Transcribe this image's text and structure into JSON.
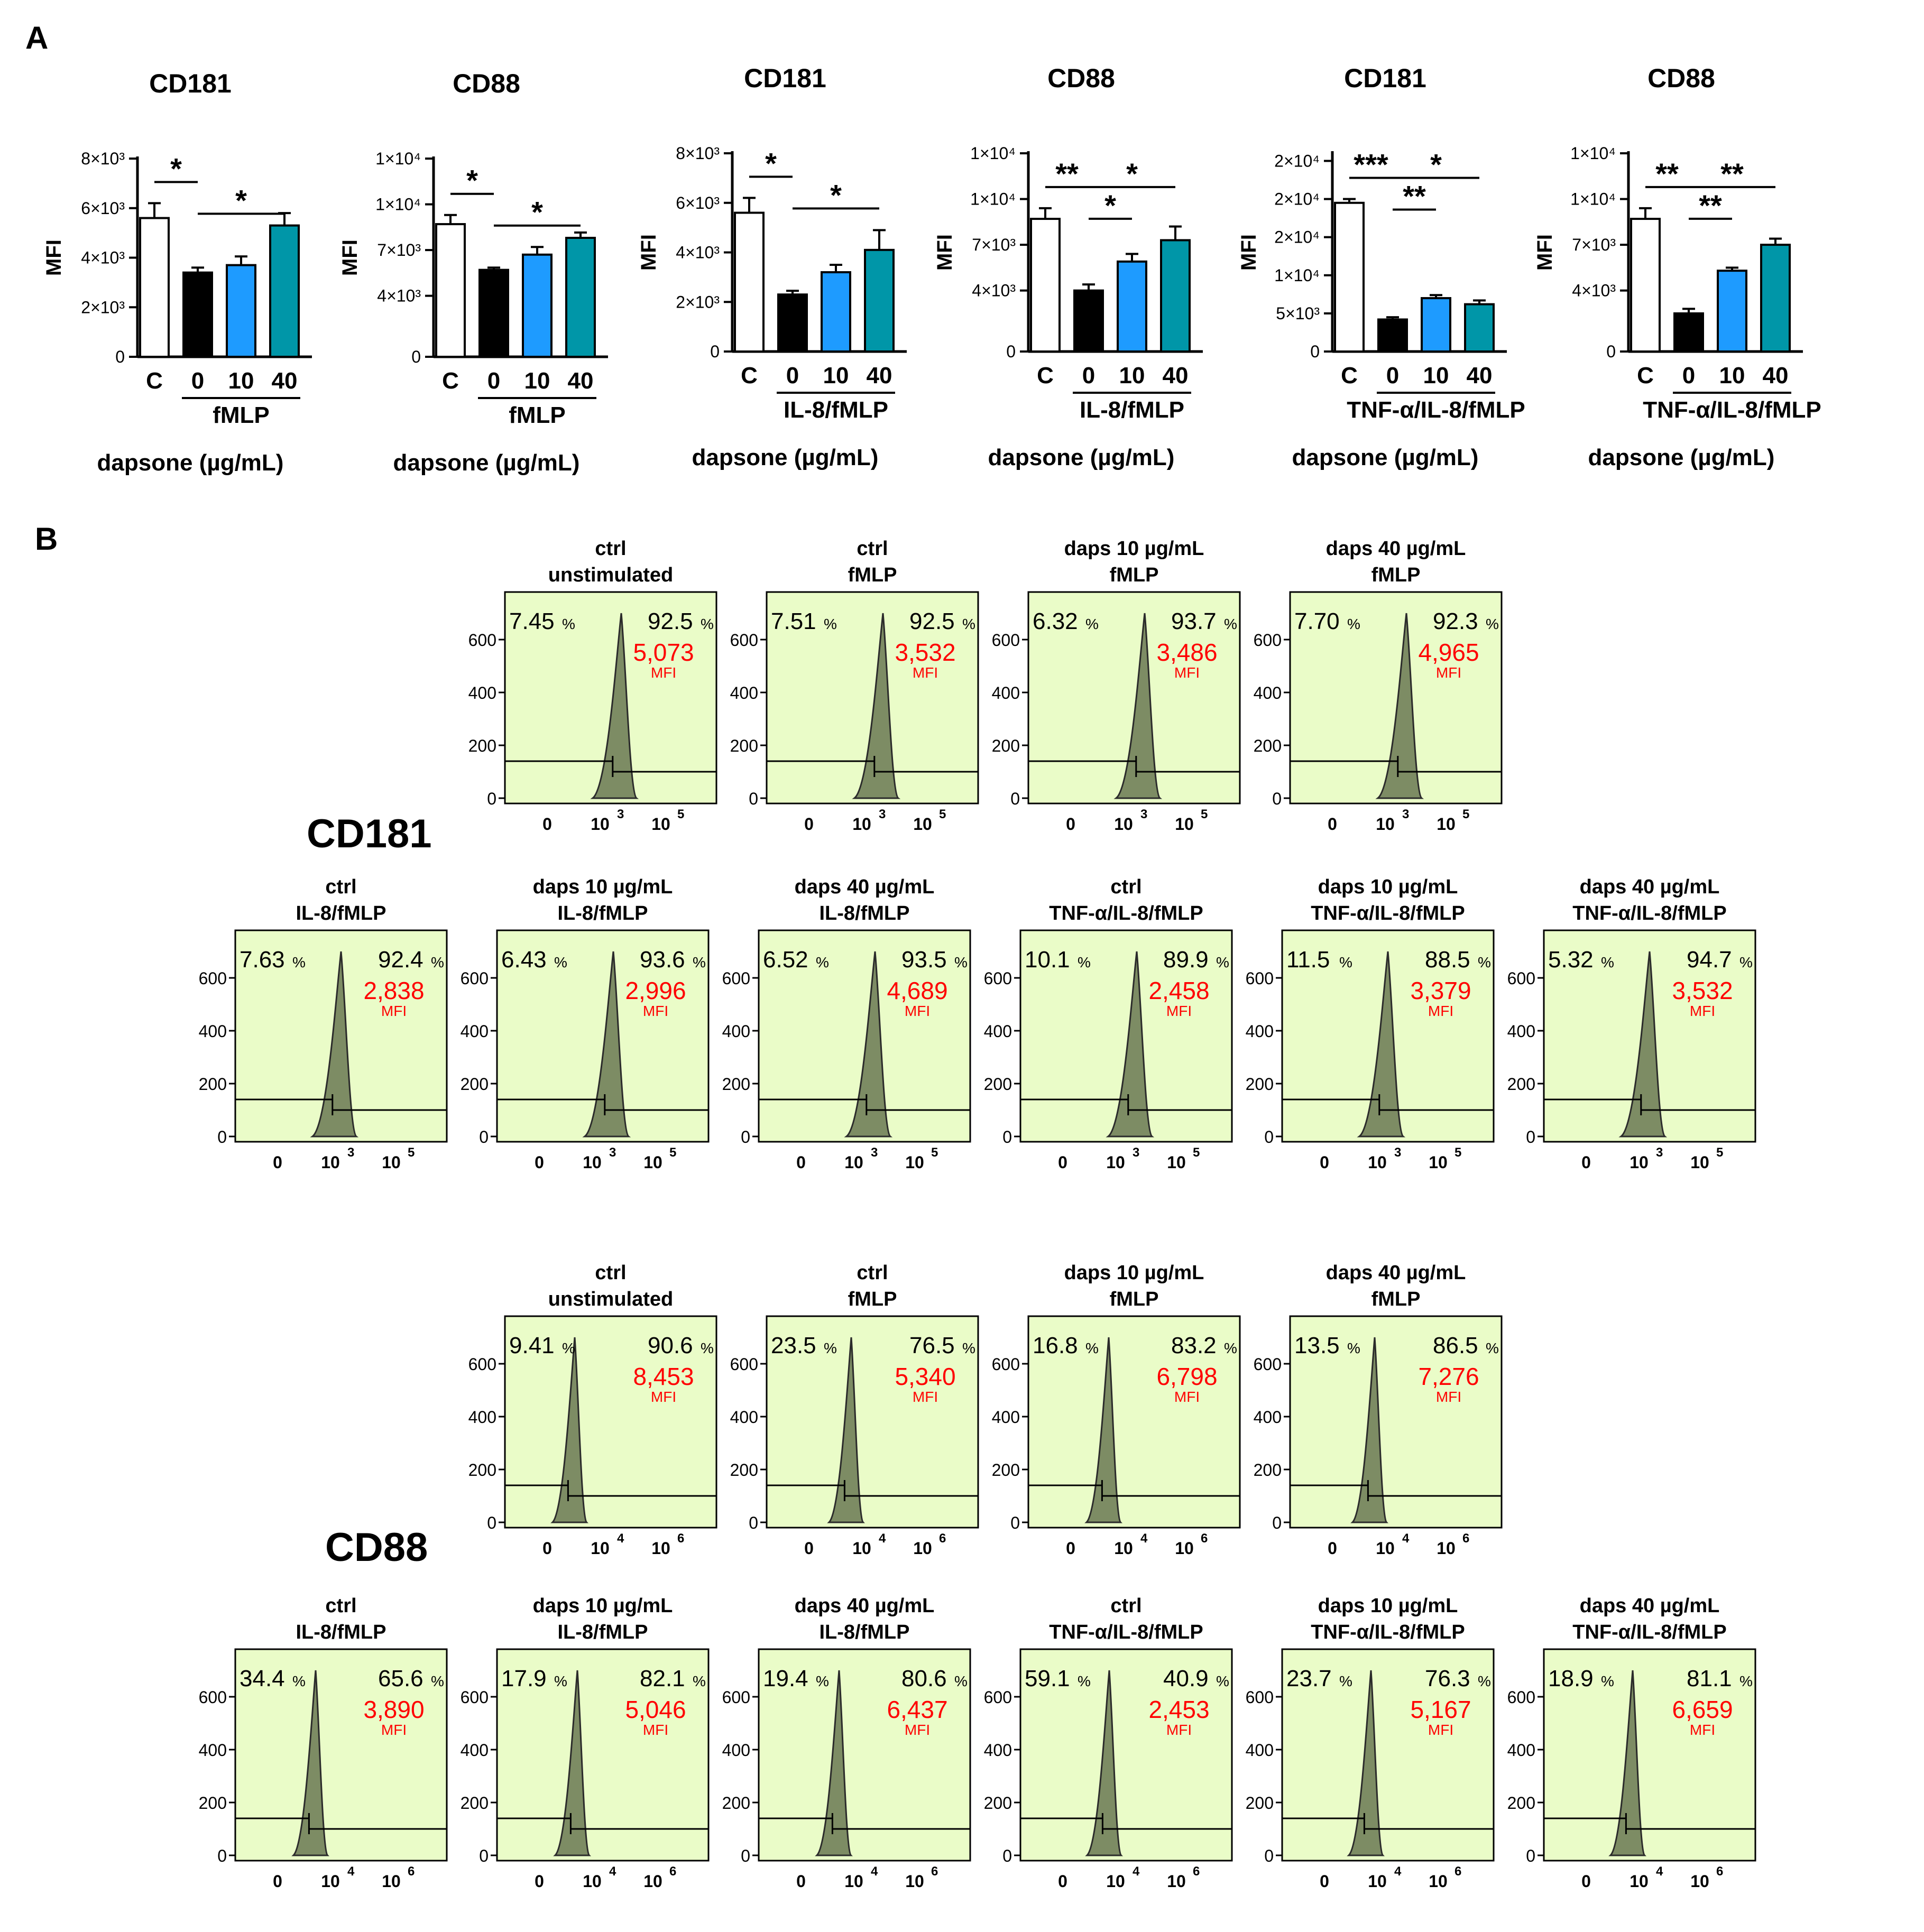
{
  "panel_labels": {
    "a": "A",
    "b": "B"
  },
  "row_labels": {
    "cd181": "CD181",
    "cd88": "CD88"
  },
  "colors": {
    "control_bar": "#ffffff",
    "zero_bar": "#000000",
    "ten_bar": "#1e9bff",
    "forty_bar": "#0096a8",
    "histogram_bg": "#eafcc8",
    "histogram_fill": "#7d8c64",
    "mfi_text": "#ff0000"
  },
  "chart_data": [
    {
      "type": "bar",
      "title": "CD181",
      "ylabel": "MFI",
      "ymax": 8000,
      "yticks": [
        {
          "v": 0,
          "label": "0"
        },
        {
          "v": 2000,
          "label": "2×10³"
        },
        {
          "v": 4000,
          "label": "4×10³"
        },
        {
          "v": 6000,
          "label": "6×10³"
        },
        {
          "v": 8000,
          "label": "8×10³"
        }
      ],
      "categories": [
        "C",
        "0",
        "10",
        "40"
      ],
      "values": [
        5600,
        3400,
        3700,
        5300
      ],
      "errors": [
        600,
        200,
        350,
        500
      ],
      "group_label": "fMLP",
      "xlabel": "dapsone (µg/mL)",
      "sig": [
        {
          "from": 0,
          "to": 1,
          "label": "*",
          "level": 0
        },
        {
          "from": 1,
          "to": 3,
          "label": "*",
          "level": 1
        }
      ]
    },
    {
      "type": "bar",
      "title": "CD88",
      "ylabel": "MFI",
      "ymax": 13000,
      "yticks": [
        {
          "v": 0,
          "label": "0"
        },
        {
          "v": 4000,
          "label": "4×10³"
        },
        {
          "v": 7000,
          "label": "7×10³"
        },
        {
          "v": 10000,
          "label": "1×10⁴"
        },
        {
          "v": 13000,
          "label": "1×10⁴"
        }
      ],
      "categories": [
        "C",
        "0",
        "10",
        "40"
      ],
      "values": [
        8700,
        5700,
        6700,
        7800
      ],
      "errors": [
        600,
        150,
        500,
        350
      ],
      "group_label": "fMLP",
      "xlabel": "dapsone (µg/mL)",
      "sig": [
        {
          "from": 0,
          "to": 1,
          "label": "*",
          "level": 0
        },
        {
          "from": 1,
          "to": 3,
          "label": "*",
          "level": 1
        }
      ]
    },
    {
      "type": "bar",
      "title": "CD181",
      "ylabel": "MFI",
      "ymax": 8000,
      "yticks": [
        {
          "v": 0,
          "label": "0"
        },
        {
          "v": 2000,
          "label": "2×10³"
        },
        {
          "v": 4000,
          "label": "4×10³"
        },
        {
          "v": 6000,
          "label": "6×10³"
        },
        {
          "v": 8000,
          "label": "8×10³"
        }
      ],
      "categories": [
        "C",
        "0",
        "10",
        "40"
      ],
      "values": [
        5600,
        2300,
        3200,
        4100
      ],
      "errors": [
        600,
        150,
        300,
        800
      ],
      "group_label": "IL-8/fMLP",
      "xlabel": "dapsone (µg/mL)",
      "sig": [
        {
          "from": 0,
          "to": 1,
          "label": "*",
          "level": 0
        },
        {
          "from": 1,
          "to": 3,
          "label": "*",
          "level": 1
        }
      ]
    },
    {
      "type": "bar",
      "title": "CD88",
      "ylabel": "MFI",
      "ymax": 13000,
      "yticks": [
        {
          "v": 0,
          "label": "0"
        },
        {
          "v": 4000,
          "label": "4×10³"
        },
        {
          "v": 7000,
          "label": "7×10³"
        },
        {
          "v": 10000,
          "label": "1×10⁴"
        },
        {
          "v": 13000,
          "label": "1×10⁴"
        }
      ],
      "categories": [
        "C",
        "0",
        "10",
        "40"
      ],
      "values": [
        8700,
        4000,
        5900,
        7300
      ],
      "errors": [
        700,
        400,
        500,
        900
      ],
      "group_label": "IL-8/fMLP",
      "xlabel": "dapsone (µg/mL)",
      "sig": [
        {
          "from": 0,
          "to": 1,
          "label": "**",
          "level": 0
        },
        {
          "from": 1,
          "to": 2,
          "label": "*",
          "level": 1
        },
        {
          "from": 1,
          "to": 3,
          "label": "*",
          "level": 0
        }
      ]
    },
    {
      "type": "bar",
      "title": "CD181",
      "ylabel": "MFI",
      "ymax": 26000,
      "yticks": [
        {
          "v": 0,
          "label": "0"
        },
        {
          "v": 5000,
          "label": "5×10³"
        },
        {
          "v": 10000,
          "label": "1×10⁴"
        },
        {
          "v": 15000,
          "label": "2×10⁴"
        },
        {
          "v": 20000,
          "label": "2×10⁴"
        },
        {
          "v": 25000,
          "label": "2×10⁴"
        }
      ],
      "categories": [
        "C",
        "0",
        "10",
        "40"
      ],
      "values": [
        19500,
        4200,
        7000,
        6200
      ],
      "errors": [
        500,
        300,
        400,
        500
      ],
      "group_label": "TNF-α/IL-8/fMLP",
      "xlabel": "dapsone (µg/mL)",
      "sig": [
        {
          "from": 0,
          "to": 1,
          "label": "***",
          "level": 0
        },
        {
          "from": 1,
          "to": 2,
          "label": "**",
          "level": 1
        },
        {
          "from": 1,
          "to": 3,
          "label": "*",
          "level": 0
        }
      ]
    },
    {
      "type": "bar",
      "title": "CD88",
      "ylabel": "MFI",
      "ymax": 13000,
      "yticks": [
        {
          "v": 0,
          "label": "0"
        },
        {
          "v": 4000,
          "label": "4×10³"
        },
        {
          "v": 7000,
          "label": "7×10³"
        },
        {
          "v": 10000,
          "label": "1×10⁴"
        },
        {
          "v": 13000,
          "label": "1×10⁴"
        }
      ],
      "categories": [
        "C",
        "0",
        "10",
        "40"
      ],
      "values": [
        8700,
        2500,
        5300,
        7000
      ],
      "errors": [
        700,
        300,
        200,
        400
      ],
      "group_label": "TNF-α/IL-8/fMLP",
      "xlabel": "dapsone (µg/mL)",
      "sig": [
        {
          "from": 0,
          "to": 1,
          "label": "**",
          "level": 0
        },
        {
          "from": 1,
          "to": 2,
          "label": "**",
          "level": 1
        },
        {
          "from": 1,
          "to": 3,
          "label": "**",
          "level": 0
        }
      ]
    }
  ],
  "histograms": {
    "y_ticks": [
      "0",
      "200",
      "400",
      "600"
    ],
    "cd181_x_ticks": [
      "0",
      "10",
      "3",
      "10",
      "5"
    ],
    "cd88_x_ticks": [
      "0",
      "10",
      "4",
      "10",
      "6"
    ],
    "pct_unit": "%",
    "mfi_label": "MFI",
    "cd181": [
      {
        "title1": "ctrl",
        "title2": "unstimulated",
        "left": "7.45",
        "right": "92.5",
        "mfi": "5,073"
      },
      {
        "title1": "ctrl",
        "title2": "fMLP",
        "left": "7.51",
        "right": "92.5",
        "mfi": "3,532"
      },
      {
        "title1": "daps 10 µg/mL",
        "title2": "fMLP",
        "left": "6.32",
        "right": "93.7",
        "mfi": "3,486"
      },
      {
        "title1": "daps 40 µg/mL",
        "title2": "fMLP",
        "left": "7.70",
        "right": "92.3",
        "mfi": "4,965"
      },
      {
        "title1": "ctrl",
        "title2": "IL-8/fMLP",
        "left": "7.63",
        "right": "92.4",
        "mfi": "2,838"
      },
      {
        "title1": "daps 10 µg/mL",
        "title2": "IL-8/fMLP",
        "left": "6.43",
        "right": "93.6",
        "mfi": "2,996"
      },
      {
        "title1": "daps 40 µg/mL",
        "title2": "IL-8/fMLP",
        "left": "6.52",
        "right": "93.5",
        "mfi": "4,689"
      },
      {
        "title1": "ctrl",
        "title2": "TNF-α/IL-8/fMLP",
        "left": "10.1",
        "right": "89.9",
        "mfi": "2,458"
      },
      {
        "title1": "daps 10 µg/mL",
        "title2": "TNF-α/IL-8/fMLP",
        "left": "11.5",
        "right": "88.5",
        "mfi": "3,379"
      },
      {
        "title1": "daps 40 µg/mL",
        "title2": "TNF-α/IL-8/fMLP",
        "left": "5.32",
        "right": "94.7",
        "mfi": "3,532"
      }
    ],
    "cd88": [
      {
        "title1": "ctrl",
        "title2": "unstimulated",
        "left": "9.41",
        "right": "90.6",
        "mfi": "8,453"
      },
      {
        "title1": "ctrl",
        "title2": "fMLP",
        "left": "23.5",
        "right": "76.5",
        "mfi": "5,340"
      },
      {
        "title1": "daps 10 µg/mL",
        "title2": "fMLP",
        "left": "16.8",
        "right": "83.2",
        "mfi": "6,798"
      },
      {
        "title1": "daps 40 µg/mL",
        "title2": "fMLP",
        "left": "13.5",
        "right": "86.5",
        "mfi": "7,276"
      },
      {
        "title1": "ctrl",
        "title2": "IL-8/fMLP",
        "left": "34.4",
        "right": "65.6",
        "mfi": "3,890"
      },
      {
        "title1": "daps 10 µg/mL",
        "title2": "IL-8/fMLP",
        "left": "17.9",
        "right": "82.1",
        "mfi": "5,046"
      },
      {
        "title1": "daps 40 µg/mL",
        "title2": "IL-8/fMLP",
        "left": "19.4",
        "right": "80.6",
        "mfi": "6,437"
      },
      {
        "title1": "ctrl",
        "title2": "TNF-α/IL-8/fMLP",
        "left": "59.1",
        "right": "40.9",
        "mfi": "2,453"
      },
      {
        "title1": "daps 10 µg/mL",
        "title2": "TNF-α/IL-8/fMLP",
        "left": "23.7",
        "right": "76.3",
        "mfi": "5,167"
      },
      {
        "title1": "daps 40 µg/mL",
        "title2": "TNF-α/IL-8/fMLP",
        "left": "18.9",
        "right": "81.1",
        "mfi": "6,659"
      }
    ]
  }
}
